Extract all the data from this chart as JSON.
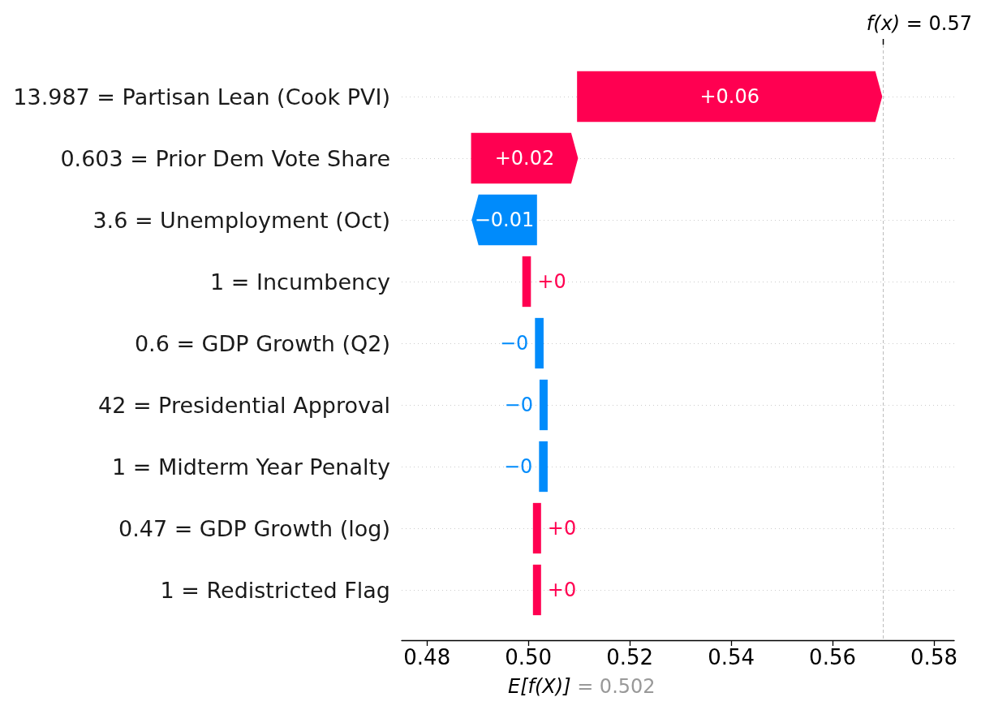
{
  "chart_data": {
    "type": "bar",
    "orientation": "horizontal",
    "categories": [
      "13.987 = Partisan Lean (Cook PVI)",
      "0.603 = Prior Dem Vote Share",
      "3.6 = Unemployment (Oct)",
      "1 = Incumbency",
      "0.6 = GDP Growth (Q2)",
      "42 = Presidential Approval",
      "1 = Midterm Year Penalty",
      "0.47 = GDP Growth (log)",
      "1 = Redistricted Flag"
    ],
    "base": [
      0.5096,
      0.4887,
      0.5017,
      0.4988,
      0.503,
      0.5038,
      0.5038,
      0.5009,
      0.5009
    ],
    "values": [
      0.0602,
      0.0211,
      -0.0129,
      0.0017,
      -0.0017,
      -0.0016,
      -0.0017,
      0.0016,
      0.0016
    ],
    "colors": [
      "#ff0051",
      "#ff0051",
      "#008bfb",
      "#ff0051",
      "#008bfb",
      "#008bfb",
      "#008bfb",
      "#ff0051",
      "#ff0051"
    ],
    "value_labels": [
      "+0.06",
      "+0.02",
      "−0.01",
      "+0",
      "−0",
      "−0",
      "−0",
      "+0",
      "+0"
    ],
    "xlim": [
      0.475,
      0.584
    ],
    "xticks": [
      0.48,
      {
        "value": 0.5,
        "label": "0.50"
      },
      0.52,
      0.54,
      0.56,
      0.58
    ],
    "grid": "y",
    "ref_lines": [
      {
        "axis": "x",
        "value": 0.57,
        "label": "f(x) = 0.57",
        "color": "#bbbbbb",
        "line_style": "dashed"
      }
    ],
    "annotations": [
      "E[f(X)] = 0.502"
    ]
  }
}
